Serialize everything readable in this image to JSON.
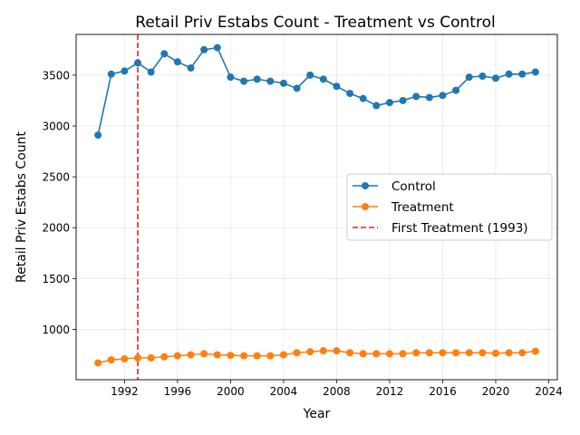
{
  "chart_data": {
    "type": "line",
    "title": "Retail Priv Estabs Count - Treatment vs Control",
    "xlabel": "Year",
    "ylabel": "Retail Priv Estabs Count",
    "x": [
      1990,
      1991,
      1992,
      1993,
      1994,
      1995,
      1996,
      1997,
      1998,
      1999,
      2000,
      2001,
      2002,
      2003,
      2004,
      2005,
      2006,
      2007,
      2008,
      2009,
      2010,
      2011,
      2012,
      2013,
      2014,
      2015,
      2016,
      2017,
      2018,
      2019,
      2020,
      2021,
      2022,
      2023
    ],
    "series": [
      {
        "name": "Control",
        "color": "#1f77b4",
        "values": [
          2910,
          3510,
          3540,
          3620,
          3530,
          3710,
          3630,
          3570,
          3750,
          3770,
          3480,
          3440,
          3460,
          3440,
          3420,
          3370,
          3500,
          3460,
          3390,
          3320,
          3270,
          3200,
          3230,
          3250,
          3290,
          3280,
          3300,
          3350,
          3480,
          3490,
          3470,
          3510,
          3510,
          3530
        ]
      },
      {
        "name": "Treatment",
        "color": "#ff7f0e",
        "values": [
          670,
          700,
          710,
          720,
          720,
          730,
          740,
          750,
          760,
          750,
          745,
          740,
          740,
          740,
          750,
          770,
          780,
          790,
          790,
          770,
          760,
          760,
          760,
          760,
          770,
          770,
          770,
          770,
          770,
          770,
          765,
          770,
          770,
          785
        ]
      }
    ],
    "reference_line": {
      "x": 1993,
      "label": "First Treatment (1993)",
      "color": "#d62728",
      "style": "dashed"
    },
    "xlim": [
      1988.35,
      2024.65
    ],
    "ylim": [
      505,
      3900
    ],
    "xticks": [
      "1992",
      "1996",
      "2000",
      "2004",
      "2008",
      "2012",
      "2016",
      "2020",
      "2024"
    ],
    "xtick_values": [
      1992,
      1996,
      2000,
      2004,
      2008,
      2012,
      2016,
      2020,
      2024
    ],
    "yticks": [
      "1000",
      "1500",
      "2000",
      "2500",
      "3000",
      "3500"
    ],
    "ytick_values": [
      1000,
      1500,
      2000,
      2500,
      3000,
      3500
    ],
    "grid": true,
    "legend_position": "center-right"
  }
}
